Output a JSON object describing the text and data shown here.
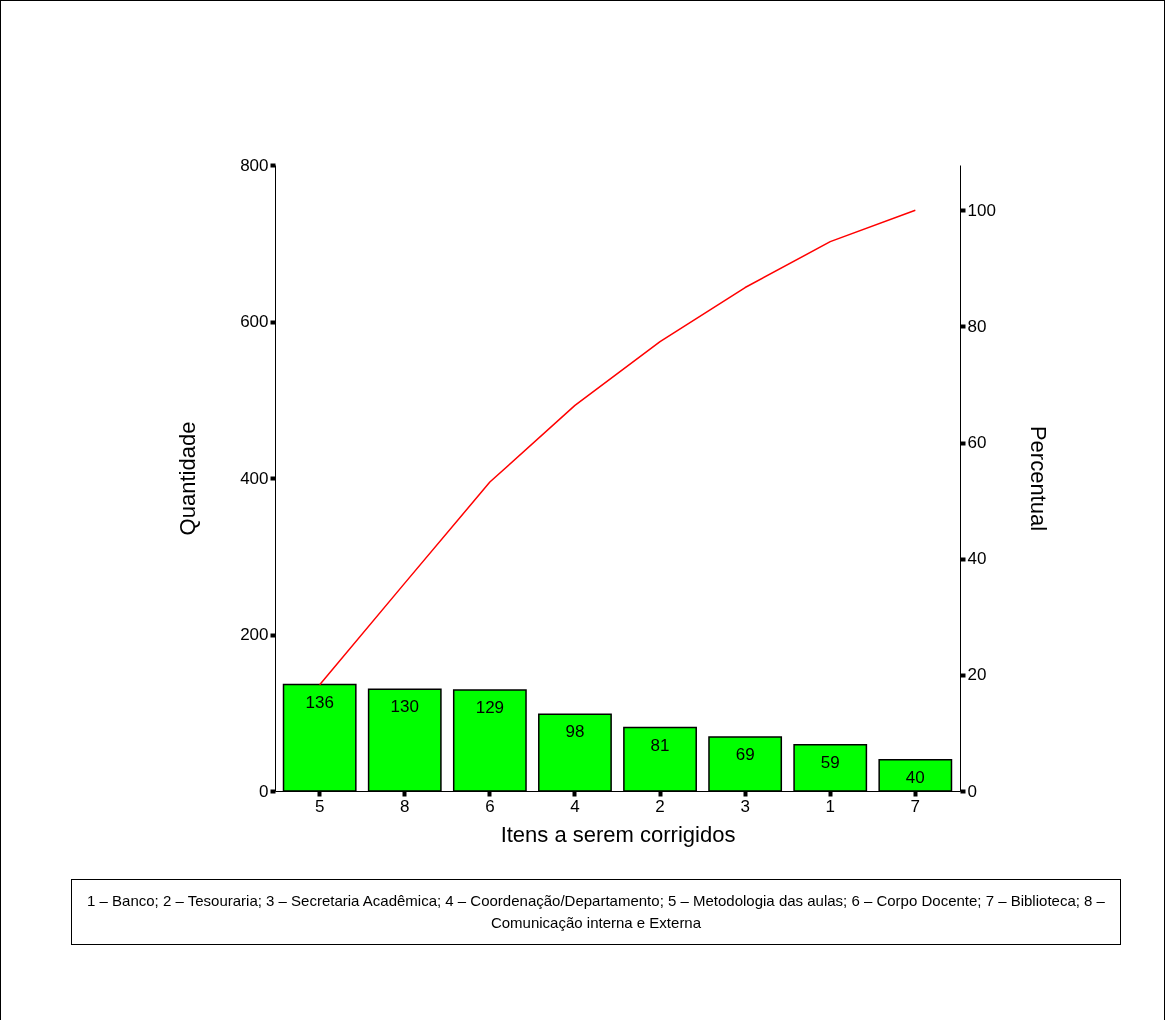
{
  "chart_data": {
    "type": "bar",
    "xlabel": "Itens a serem corrigidos",
    "ylabel": "Quantidade",
    "y2label": "Percentual",
    "categories": [
      "5",
      "8",
      "6",
      "4",
      "2",
      "3",
      "1",
      "7"
    ],
    "series": [
      {
        "color": "#00ff00",
        "values": [
          136,
          130,
          129,
          98,
          81,
          69,
          59,
          40
        ],
        "value_labels": [
          "136",
          "130",
          "129",
          "98",
          "81",
          "69",
          "59",
          "40"
        ]
      },
      {
        "type": "line",
        "axis": "y2",
        "color": "#ff0000",
        "values": [
          18.3,
          35.8,
          53.2,
          66.4,
          77.4,
          86.7,
          94.6,
          100
        ]
      }
    ],
    "ylim": [
      0,
      800
    ],
    "yticks": [
      0,
      200,
      400,
      600,
      800
    ],
    "y2lim": [
      0,
      107.8
    ],
    "y2ticks": [
      0,
      20,
      40,
      60,
      80,
      100
    ],
    "annotations": [
      "1 – Banco; 2 – Tesouraria; 3 – Secretaria Acadêmica; 4 – Coordenação/Departamento; 5 – Metodologia das aulas; 6 – Corpo Docente; 7 – Biblioteca; 8 – Comunicação interna e Externa"
    ]
  }
}
